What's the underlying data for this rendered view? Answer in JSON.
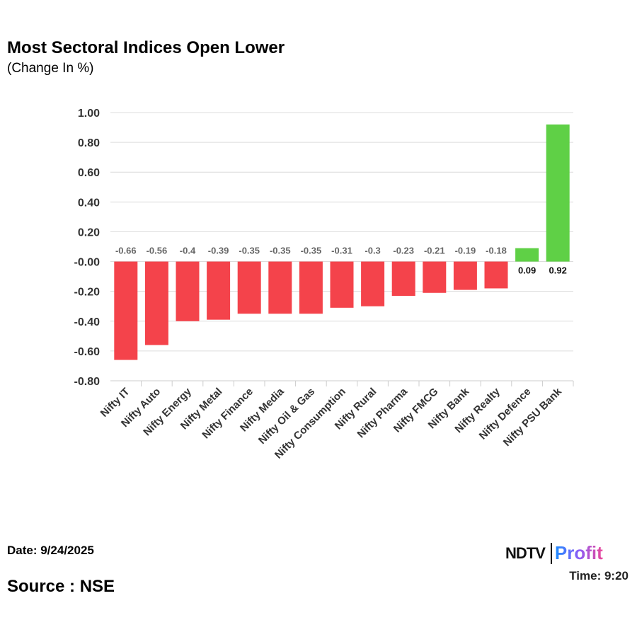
{
  "title": "Most Sectoral Indices Open Lower",
  "subtitle": "(Change In %)",
  "date": "Date: 9/24/2025",
  "time": "Time: 9:20",
  "source": "Source : NSE",
  "logo": {
    "left": "NDTV",
    "right": "Profit"
  },
  "chart_data": {
    "type": "bar",
    "title": "Most Sectoral Indices Open Lower",
    "subtitle": "(Change In %)",
    "categories": [
      "Nifty IT",
      "Nifty Auto",
      "Nifty Energy",
      "Nifty Metal",
      "Nifty Finance",
      "Nifty Media",
      "Nifty Oil & Gas",
      "Nifty Consumption",
      "Nifty Rural",
      "Nifty Pharma",
      "Nifty FMCG",
      "Nifty Bank",
      "Nifty Realty",
      "Nifty Defence",
      "Nifty PSU Bank"
    ],
    "values": [
      -0.66,
      -0.56,
      -0.4,
      -0.39,
      -0.35,
      -0.35,
      -0.35,
      -0.31,
      -0.3,
      -0.23,
      -0.21,
      -0.19,
      -0.18,
      0.09,
      0.92
    ],
    "data_labels": [
      "-0.66",
      "-0.56",
      "-0.4",
      "-0.39",
      "-0.35",
      "-0.35",
      "-0.35",
      "-0.31",
      "-0.3",
      "-0.23",
      "-0.21",
      "-0.19",
      "-0.18",
      "0.09",
      "0.92"
    ],
    "yticks": [
      "1.00",
      "0.80",
      "0.60",
      "0.40",
      "0.20",
      "-0.00",
      "-0.20",
      "-0.40",
      "-0.60",
      "-0.80"
    ],
    "ylim": [
      -0.8,
      1.0
    ],
    "grid": true,
    "colors": {
      "positive": "#5fd046",
      "negative": "#f4434b"
    }
  }
}
